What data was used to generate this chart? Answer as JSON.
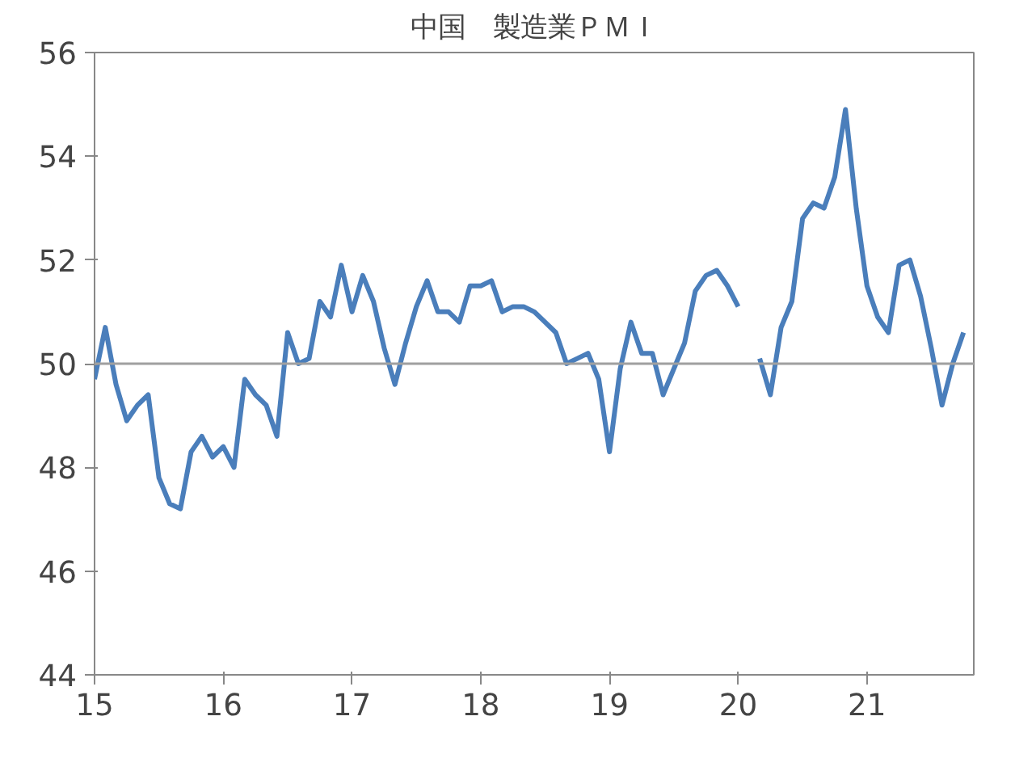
{
  "chart_data": {
    "type": "line",
    "title": "中国　製造業ＰＭＩ",
    "x": [
      15.0,
      15.0833,
      15.1667,
      15.25,
      15.3333,
      15.4167,
      15.5,
      15.5833,
      15.6667,
      15.75,
      15.8333,
      15.9167,
      16.0,
      16.0833,
      16.1667,
      16.25,
      16.3333,
      16.4167,
      16.5,
      16.5833,
      16.6667,
      16.75,
      16.8333,
      16.9167,
      17.0,
      17.0833,
      17.1667,
      17.25,
      17.3333,
      17.4167,
      17.5,
      17.5833,
      17.6667,
      17.75,
      17.8333,
      17.9167,
      18.0,
      18.0833,
      18.1667,
      18.25,
      18.3333,
      18.4167,
      18.5,
      18.5833,
      18.6667,
      18.75,
      18.8333,
      18.9167,
      19.0,
      19.0833,
      19.1667,
      19.25,
      19.3333,
      19.4167,
      19.5,
      19.5833,
      19.6667,
      19.75,
      19.8333,
      19.9167,
      20.0,
      20.0833,
      20.1667,
      20.25,
      20.3333,
      20.4167,
      20.5,
      20.5833,
      20.6667,
      20.75,
      20.8333,
      20.9167,
      21.0,
      21.0833,
      21.1667,
      21.25,
      21.3333,
      21.4167,
      21.5,
      21.5833,
      21.6667,
      21.75
    ],
    "series": [
      {
        "color": "#4a7ebb",
        "values": [
          49.7,
          50.7,
          49.6,
          48.9,
          49.2,
          49.4,
          47.8,
          47.3,
          47.2,
          48.3,
          48.6,
          48.2,
          48.4,
          48.0,
          49.7,
          49.4,
          49.2,
          48.6,
          50.6,
          50.0,
          50.1,
          51.2,
          50.9,
          51.9,
          51.0,
          51.7,
          51.2,
          50.3,
          49.6,
          50.4,
          51.1,
          51.6,
          51.0,
          51.0,
          50.8,
          51.5,
          51.5,
          51.6,
          51.0,
          51.1,
          51.1,
          51.0,
          50.8,
          50.6,
          50.0,
          50.1,
          50.2,
          49.7,
          48.3,
          49.9,
          50.8,
          50.2,
          50.2,
          49.4,
          49.9,
          50.4,
          51.4,
          51.7,
          51.8,
          51.5,
          51.1,
          null,
          50.1,
          49.4,
          50.7,
          51.2,
          52.8,
          53.1,
          53.0,
          53.6,
          54.9,
          53.0,
          51.5,
          50.9,
          50.6,
          51.9,
          52.0,
          51.3,
          50.3,
          49.2,
          50.0,
          50.6
        ]
      }
    ],
    "xlim": [
      15,
      21.83
    ],
    "xticks": [
      15,
      16,
      17,
      18,
      19,
      20,
      21
    ],
    "ylim": [
      44,
      56
    ],
    "yticks": [
      44,
      46,
      48,
      50,
      52,
      54,
      56
    ],
    "ref_lines": [
      {
        "axis": "y",
        "value": 50,
        "color": "#a0a0a0"
      }
    ],
    "grid": false,
    "marker": "none",
    "line_style": "solid"
  }
}
